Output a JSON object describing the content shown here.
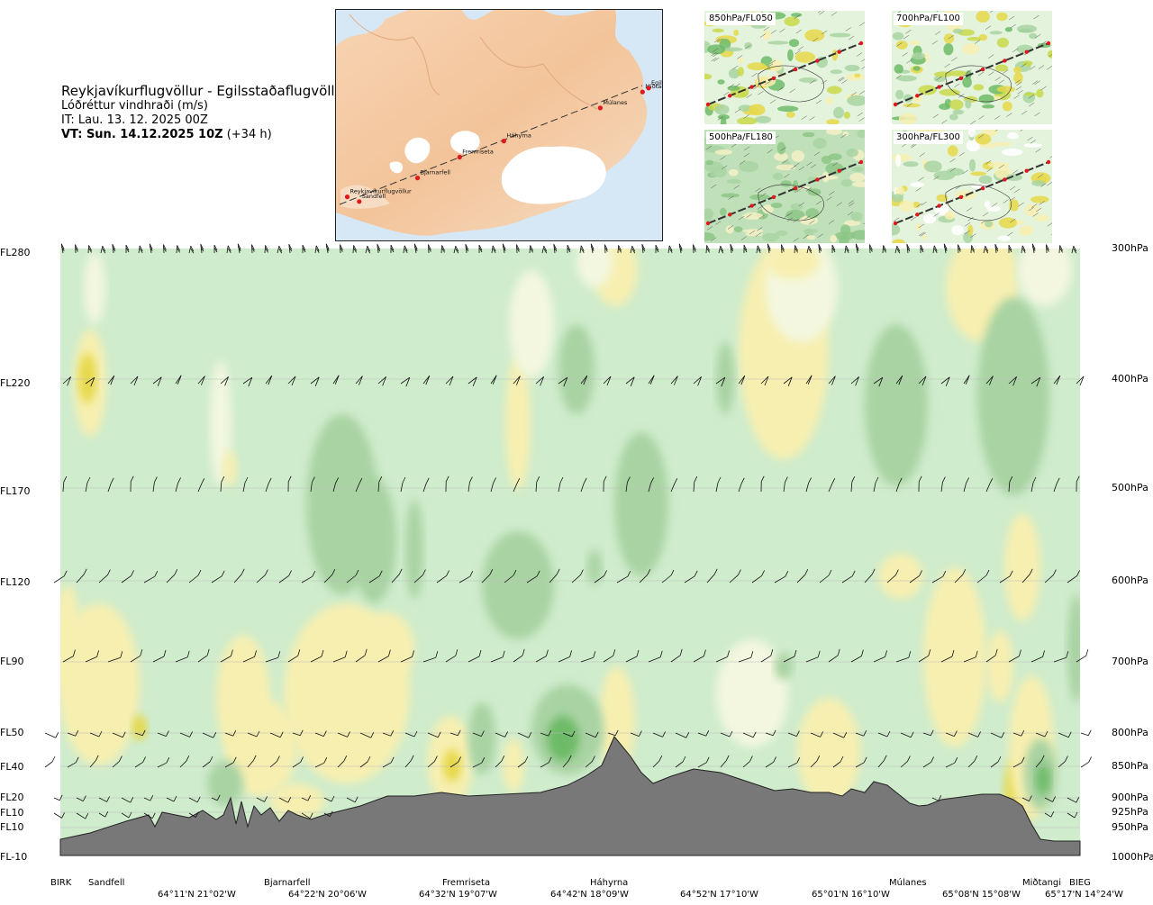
{
  "header": {
    "route": "Reykjavíkurflugvöllur - Egilsstaðaflugvöllur",
    "parameter": "Lóðréttur vindhraði (m/s)",
    "issue_time": "IT: Lau. 13. 12. 2025 00Z",
    "valid_prefix": "VT: Sun. 14.12.2025 10Z",
    "valid_suffix": "(+34 h)"
  },
  "map": {
    "stations": [
      {
        "name": "Reykjavíkurflugvöllur",
        "lon": -21.9,
        "lat": 64.13
      },
      {
        "name": "Sandfell",
        "lon": -21.6,
        "lat": 64.08
      },
      {
        "name": "Bjarnarfell",
        "lon": -20.15,
        "lat": 64.33
      },
      {
        "name": "Fremriseta",
        "lon": -19.1,
        "lat": 64.55
      },
      {
        "name": "Háhyrna",
        "lon": -18.0,
        "lat": 64.72
      },
      {
        "name": "Múlanes",
        "lon": -15.6,
        "lat": 65.07
      },
      {
        "name": "Miðtangi",
        "lon": -14.55,
        "lat": 65.24
      },
      {
        "name": "Egilsstaðir",
        "lon": -14.4,
        "lat": 65.28
      }
    ]
  },
  "mini_maps": [
    {
      "label": "850hPa/FL050"
    },
    {
      "label": "700hPa/FL100"
    },
    {
      "label": "500hPa/FL180"
    },
    {
      "label": "300hPa/FL300"
    }
  ],
  "cross_section": {
    "flight_levels": [
      "FL280",
      "FL220",
      "FL170",
      "FL120",
      "FL90",
      "FL50",
      "FL40",
      "FL20",
      "FL10",
      "FL10",
      "FL-10"
    ],
    "pressure_levels": [
      "300hPa",
      "400hPa",
      "500hPa",
      "600hPa",
      "700hPa",
      "800hPa",
      "850hPa",
      "900hPa",
      "925hPa",
      "950hPa",
      "1000hPa"
    ],
    "waypoints": [
      "BIRK",
      "Sandfell",
      "Bjarnarfell",
      "Fremriseta",
      "Háhyrna",
      "Múlanes",
      "Miðtangi",
      "BIEG"
    ],
    "coordinates": [
      "64°11'N 21°02'W",
      "64°22'N 20°06'W",
      "64°32'N 19°07'W",
      "64°42'N 18°09'W",
      "64°52'N 17°10'W",
      "65°01'N 16°10'W",
      "65°08'N 15°08'W",
      "65°17'N 14°24'W"
    ]
  },
  "colors": {
    "background_field": "#cfeccc",
    "updraft_weak": "#f3f7df",
    "updraft_moderate": "#f7efb0",
    "updraft_strong": "#e6d84a",
    "downdraft_moderate": "#a9d3a3",
    "downdraft_strong": "#6dbb68",
    "terrain": "#787878",
    "route_point": "#e0191d"
  }
}
